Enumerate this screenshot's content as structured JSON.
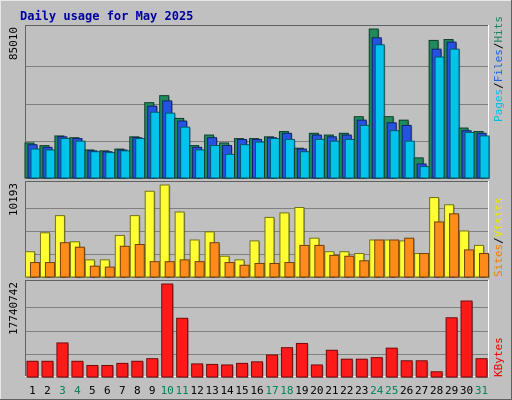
{
  "chart_data": {
    "type": "bar",
    "title": "Daily usage for May 2025",
    "categories": [
      "1",
      "2",
      "3",
      "4",
      "5",
      "6",
      "7",
      "8",
      "9",
      "10",
      "11",
      "12",
      "13",
      "14",
      "15",
      "16",
      "17",
      "18",
      "19",
      "20",
      "21",
      "22",
      "23",
      "24",
      "25",
      "26",
      "27",
      "28",
      "29",
      "30",
      "31"
    ],
    "weekend_days": [
      "3",
      "4",
      "10",
      "11",
      "17",
      "18",
      "24",
      "25",
      "31"
    ],
    "panels": [
      {
        "name": "hits-files-pages",
        "axis_max_label": "85010",
        "ylim": [
          0,
          85010
        ],
        "grid": true,
        "legend": [
          {
            "text": "Pages",
            "color": "#00c0e0"
          },
          {
            "text": "Files",
            "color": "#2060e0"
          },
          {
            "text": "Hits",
            "color": "#208060"
          }
        ],
        "series": [
          {
            "name": "Hits",
            "color": "#1f8a5c",
            "values": [
              20000,
              18500,
              24000,
              23000,
              16000,
              15500,
              16500,
              23500,
              43000,
              47000,
              34000,
              18500,
              24500,
              20000,
              22500,
              22500,
              23500,
              26500,
              17000,
              25500,
              24500,
              25500,
              35000,
              85000,
              35000,
              33000,
              11500,
              78500,
              79000,
              28500,
              26500
            ]
          },
          {
            "name": "Files",
            "color": "#2552e0",
            "values": [
              19000,
              17500,
              23500,
              22500,
              15500,
              15000,
              16000,
              23000,
              41000,
              44000,
              32500,
              17500,
              23000,
              18500,
              22000,
              22000,
              23000,
              25500,
              16500,
              24500,
              23500,
              24500,
              33000,
              80000,
              31500,
              30000,
              8000,
              73500,
              77500,
              27000,
              25500
            ]
          },
          {
            "name": "Pages",
            "color": "#00c4ec",
            "values": [
              16500,
              16000,
              22500,
              21000,
              15000,
              14500,
              15500,
              22500,
              37500,
              37000,
              29000,
              16000,
              18500,
              13500,
              19000,
              20500,
              22500,
              22000,
              15000,
              22000,
              21000,
              22000,
              30000,
              76000,
              27000,
              21000,
              6500,
              69000,
              73500,
              26000,
              24000
            ]
          }
        ]
      },
      {
        "name": "visits-sites",
        "axis_max_label": "10193",
        "ylim": [
          0,
          10193
        ],
        "grid": true,
        "legend": [
          {
            "text": "Sites",
            "color": "#f08000"
          },
          {
            "text": "Visits",
            "color": "#e8e800"
          }
        ],
        "series": [
          {
            "name": "Visits",
            "color": "#ffff33",
            "values": [
              2800,
              4900,
              6800,
              3900,
              1900,
              1900,
              4600,
              6800,
              9500,
              10193,
              7200,
              4100,
              5000,
              2300,
              1900,
              4000,
              6600,
              7100,
              7700,
              4300,
              2800,
              2800,
              2600,
              4100,
              4100,
              4000,
              2600,
              8800,
              8000,
              5100,
              3500
            ]
          },
          {
            "name": "Sites",
            "color": "#ff8c1a",
            "values": [
              1600,
              1600,
              3800,
              3300,
              1200,
              1100,
              3400,
              3600,
              1700,
              1700,
              1900,
              1700,
              3800,
              1600,
              1300,
              1500,
              1500,
              1600,
              3500,
              3500,
              2400,
              2300,
              1800,
              4100,
              4100,
              4300,
              2600,
              6100,
              7000,
              3000,
              2600
            ]
          }
        ]
      },
      {
        "name": "kbytes",
        "axis_max_label": "17740742",
        "ylim": [
          0,
          17740742
        ],
        "grid": true,
        "legend": [
          {
            "text": "KBytes",
            "color": "#f00000"
          }
        ],
        "series": [
          {
            "name": "KBytes",
            "color": "#ff1a1a",
            "values": [
              3000000,
              3000000,
              6500000,
              3000000,
              2200000,
              2200000,
              2600000,
              3000000,
              3500000,
              17740742,
              11200000,
              2500000,
              2400000,
              2300000,
              2600000,
              2900000,
              4200000,
              5600000,
              6400000,
              2300000,
              5100000,
              3400000,
              3400000,
              3700000,
              5500000,
              3100000,
              3100000,
              1000000,
              11300000,
              14500000,
              3500000
            ]
          }
        ]
      }
    ]
  }
}
